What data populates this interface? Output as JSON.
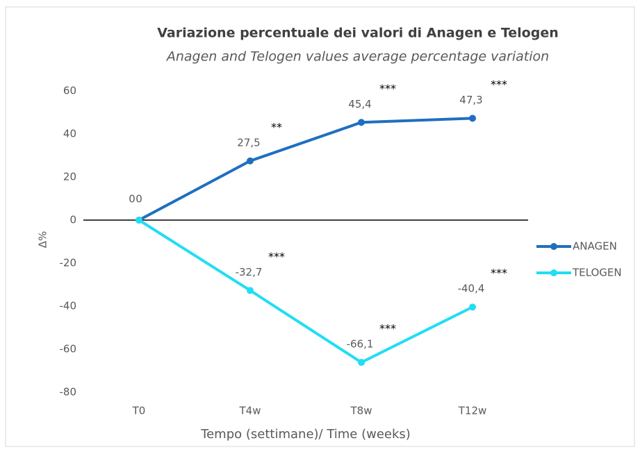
{
  "chart_data": {
    "type": "line",
    "title": "Variazione percentuale dei valori di Anagen e Telogen",
    "subtitle": "Anagen and Telogen values average percentage variation",
    "x_label": "Tempo (settimane)/ Time (weeks)",
    "y_label": "Δ%",
    "categories": [
      "T0",
      "T4w",
      "T8w",
      "T12w"
    ],
    "series": [
      {
        "name": "ANAGEN",
        "color": "#1f6fbf",
        "values": [
          0,
          27.5,
          45.4,
          47.3
        ],
        "value_labels": [
          "0",
          "27,5",
          "45,4",
          "47,3"
        ],
        "significance": [
          null,
          "**",
          "***",
          "***"
        ]
      },
      {
        "name": "TELOGEN",
        "color": "#22ddf5",
        "values": [
          0,
          -32.7,
          -66.1,
          -40.4
        ],
        "value_labels": [
          "0",
          "-32,7",
          "-66,1",
          "-40,4"
        ],
        "significance": [
          null,
          "***",
          "***",
          "***"
        ]
      }
    ],
    "ylim": [
      -80,
      60
    ],
    "yticks": [
      -80,
      -60,
      -40,
      -20,
      0,
      20,
      40,
      60
    ],
    "grid": false,
    "legend": "right"
  }
}
